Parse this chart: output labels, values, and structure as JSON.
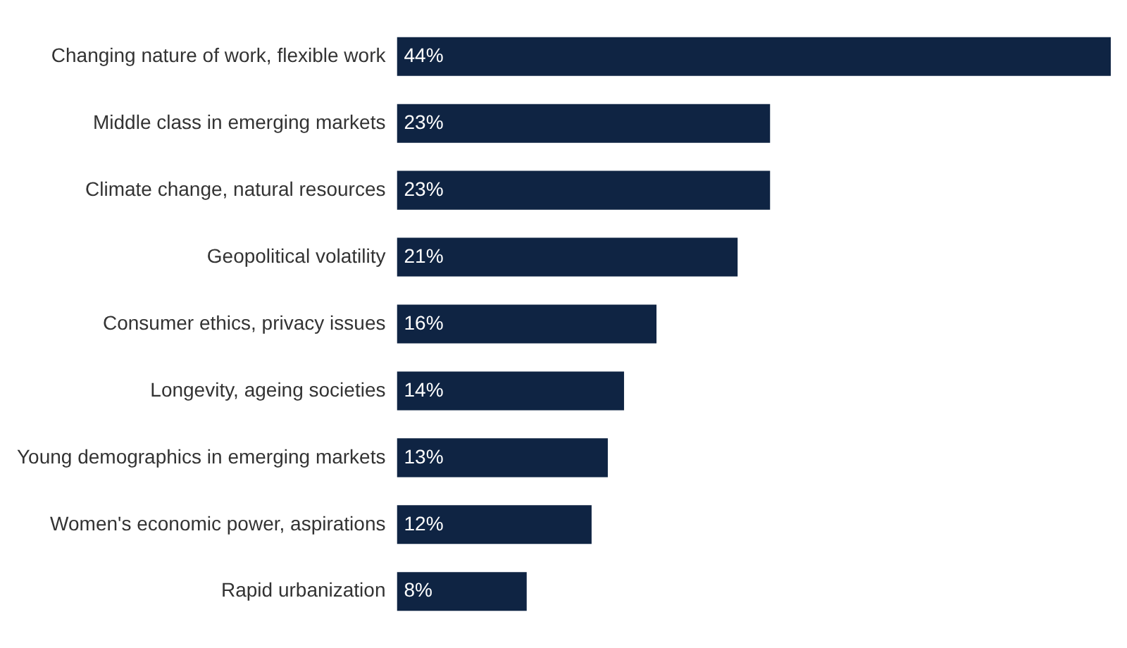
{
  "chart_data": {
    "type": "bar",
    "orientation": "horizontal",
    "categories": [
      "Changing nature of work, flexible work",
      "Middle class in emerging markets",
      "Climate change, natural resources",
      "Geopolitical volatility",
      "Consumer ethics, privacy issues",
      "Longevity, ageing societies",
      "Young demographics in emerging markets",
      "Women's economic power, aspirations",
      "Rapid urbanization"
    ],
    "values": [
      44,
      23,
      23,
      21,
      16,
      14,
      13,
      12,
      8
    ],
    "value_labels": [
      "44%",
      "23%",
      "23%",
      "21%",
      "16%",
      "14%",
      "13%",
      "12%",
      "8%"
    ],
    "color": "#0f2443",
    "tick_labels": "y",
    "legend": false
  }
}
